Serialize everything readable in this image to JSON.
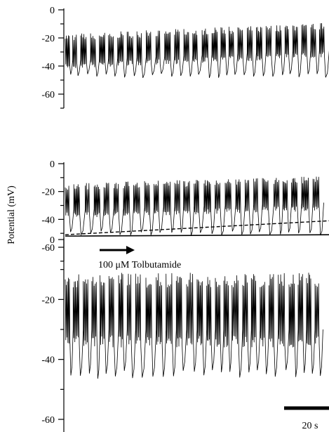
{
  "chart_data": [
    {
      "type": "line",
      "title": "",
      "xlabel": "",
      "ylabel": "",
      "ylim": [
        -70,
        0
      ],
      "yticks": [
        0,
        -20,
        -40,
        -60
      ],
      "ytick_labels": [
        "0",
        "-20",
        "-40",
        "-60"
      ],
      "grid": false,
      "series": [
        {
          "trace": "membrane potential",
          "duration_s": 96,
          "burst_cycles": 30,
          "plateau_mV": [
            -30,
            -22
          ],
          "trough_mV": -47
        }
      ]
    },
    {
      "type": "line",
      "title": "",
      "xlabel": "",
      "ylabel": "Potential (mV)",
      "ylim": [
        -70,
        0
      ],
      "yticks": [
        0,
        -20,
        -40,
        -60
      ],
      "ytick_labels": [
        "0",
        "-20",
        "-40",
        "-60"
      ],
      "grid": false,
      "series": [
        {
          "trace": "membrane potential",
          "duration_s": 96,
          "burst_cycles": 26,
          "plateau_mV": [
            -27,
            -22
          ],
          "trough_mV": -50
        }
      ],
      "reference_lines": [
        {
          "style": "solid",
          "y": [
            -52,
            -51
          ]
        },
        {
          "style": "dashed",
          "y": [
            -51,
            -41
          ]
        }
      ],
      "annotation": {
        "label": "100 μM Tolbutamide",
        "arrow": "right"
      }
    },
    {
      "type": "line",
      "title": "",
      "xlabel": "",
      "ylabel": "",
      "ylim": [
        -70,
        0
      ],
      "yticks": [
        0,
        -20,
        -40,
        -60
      ],
      "ytick_labels": [
        "0",
        "-20",
        "-40",
        "-60"
      ],
      "grid": false,
      "series": [
        {
          "trace": "membrane potential",
          "duration_s": 96,
          "burst_cycles": 28,
          "plateau_mV": [
            -24,
            -24
          ],
          "trough_mV": -45
        }
      ],
      "scale_bar": {
        "label": "20 s",
        "seconds": 20
      }
    }
  ]
}
